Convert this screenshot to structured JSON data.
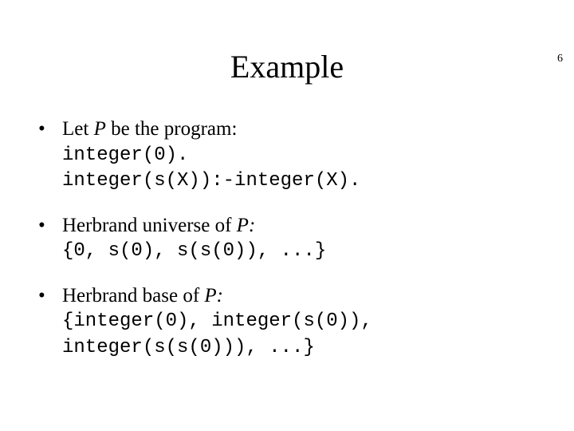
{
  "page_number": "6",
  "title": "Example",
  "bullets": [
    {
      "lead_pre": "Let ",
      "lead_var": "P",
      "lead_post": " be the program:",
      "lines": [
        "integer(0).",
        "integer(s(X)):-integer(X)."
      ]
    },
    {
      "lead_pre": "Herbrand universe of ",
      "lead_var": "P:",
      "lead_post": "",
      "lines": [
        "{0, s(0), s(s(0)), ...}"
      ]
    },
    {
      "lead_pre": "Herbrand base of ",
      "lead_var": "P:",
      "lead_post": "",
      "lines": [
        "{integer(0), integer(s(0)),",
        "integer(s(s(0))), ...}"
      ]
    }
  ]
}
